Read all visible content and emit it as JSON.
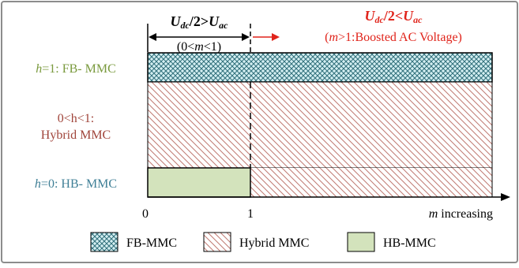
{
  "regions": {
    "low_mod": {
      "title_main": "U",
      "title_sub1": "dc",
      "title_mid": "/2>",
      "title_main2": "U",
      "title_sub2": "ac",
      "range_open": "(0<",
      "range_var": "m",
      "range_close": "<1)"
    },
    "high_mod": {
      "title_main": "U",
      "title_sub1": "dc",
      "title_mid": "/2<",
      "title_main2": "U",
      "title_sub2": "ac",
      "note_open": "(",
      "note_var": "m",
      "note_rest": ">1:Boosted AC Voltage)"
    }
  },
  "rows": [
    {
      "id": "fb",
      "var": "h",
      "rest": "=1: FB- MMC",
      "color": "#7a9a3e"
    },
    {
      "id": "hybrid",
      "line1": "0<h<1:",
      "line2": "Hybrid MMC",
      "color": "#a0443a"
    },
    {
      "id": "hb",
      "var": "h",
      "rest": "=0: HB- MMC",
      "color": "#3f7f96"
    }
  ],
  "axis": {
    "tick0": "0",
    "tick1": "1",
    "label_var": "m",
    "label_rest": " increasing"
  },
  "legend": [
    {
      "id": "fb",
      "label": "FB-MMC"
    },
    {
      "id": "hybrid",
      "label": "Hybrid MMC"
    },
    {
      "id": "hb",
      "label": "HB-MMC"
    }
  ],
  "colors": {
    "frame": "#8c8c8c",
    "fb_fill": "#d4eff2",
    "fb_hatch": "#2f6e7a",
    "hybrid_hatch": "#c07a72",
    "hb_fill": "#d3e3bc",
    "arrow_red": "#e0241b",
    "text_red": "#e0241b"
  }
}
